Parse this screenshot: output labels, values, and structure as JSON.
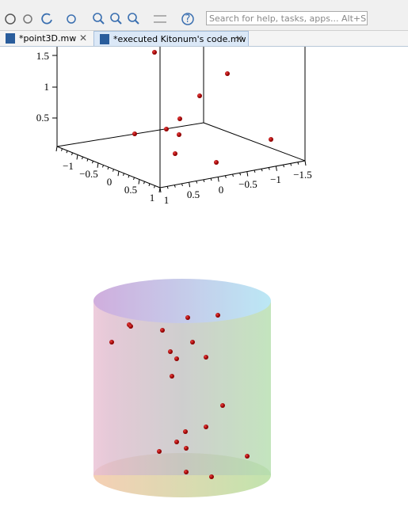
{
  "toolbar": {
    "search_placeholder": "Search for help, tasks, apps... Alt+S"
  },
  "tabs": [
    {
      "label": "*point3D.mw"
    },
    {
      "label": "*executed Kitonum's code.mw"
    }
  ],
  "plot1": {
    "z_ticks": [
      "1.5",
      "1",
      "0.5"
    ],
    "left_ticks": [
      "−1",
      "−0.5",
      "0",
      "0.5",
      "1"
    ],
    "right_ticks": [
      "1",
      "0.5",
      "0",
      "−0.5",
      "−1",
      "−1.5"
    ]
  }
}
